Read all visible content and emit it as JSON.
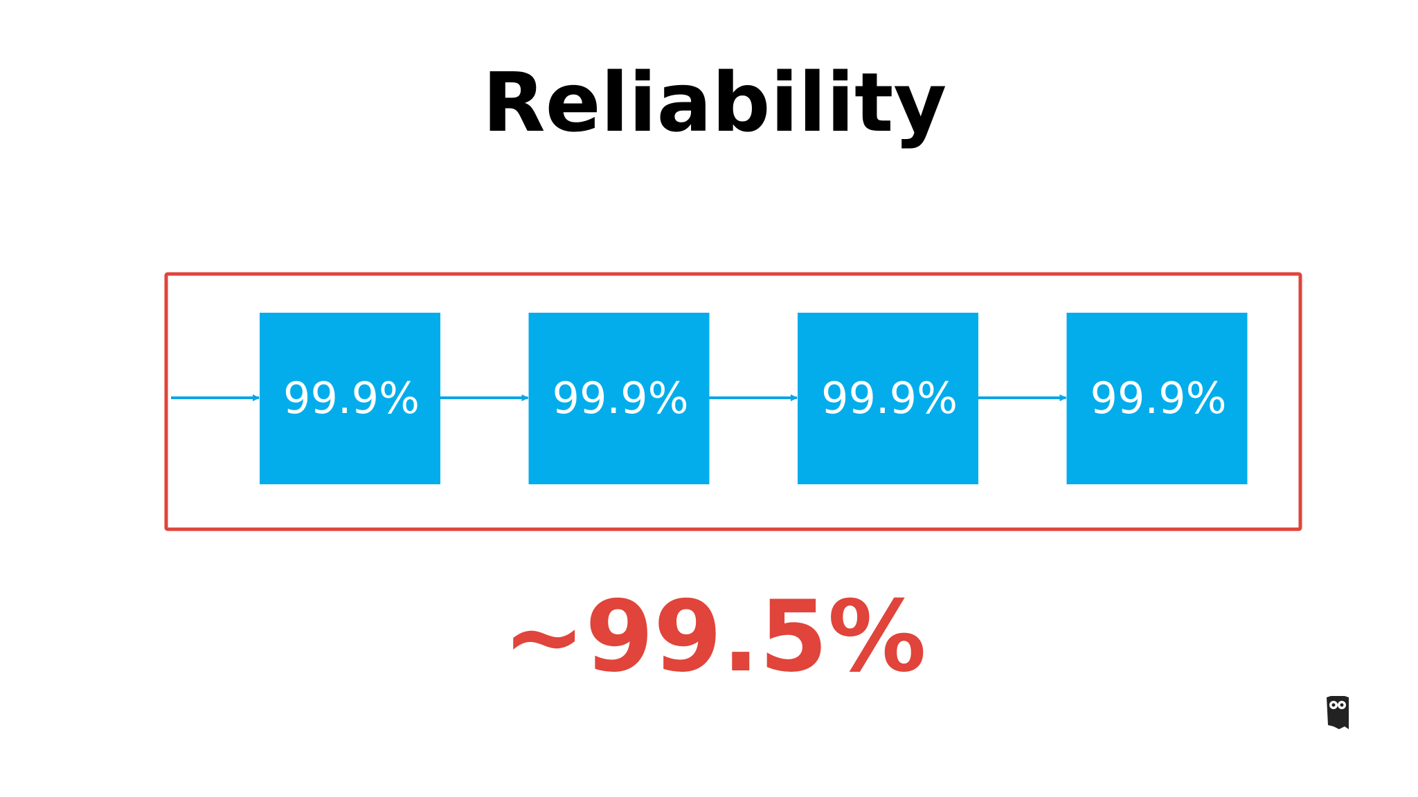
{
  "title": "Reliability",
  "nodes": [
    {
      "label": "99.9%"
    },
    {
      "label": "99.9%"
    },
    {
      "label": "99.9%"
    },
    {
      "label": "99.9%"
    }
  ],
  "result": "~99.5%"
}
